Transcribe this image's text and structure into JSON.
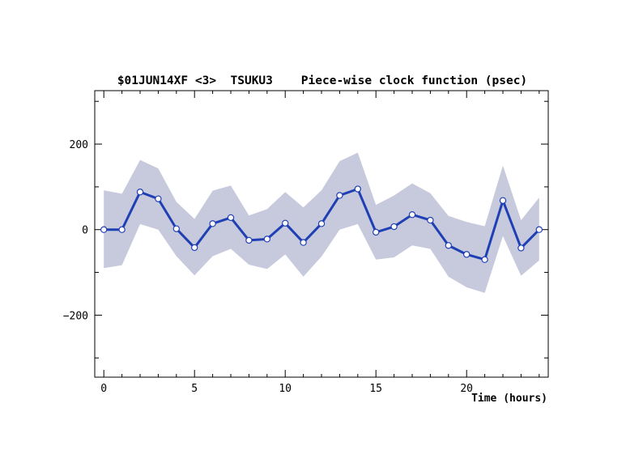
{
  "chart_data": {
    "type": "line",
    "title": "$01JUN14XF <3>  TSUKU3    Piece-wise clock function (psec)",
    "xlabel": "Time (hours)",
    "ylabel": "",
    "xlim": [
      -0.5,
      24.5
    ],
    "ylim": [
      -345,
      325
    ],
    "x_ticks": [
      0,
      5,
      10,
      15,
      20
    ],
    "y_ticks": [
      -200,
      0,
      200
    ],
    "x_tick_labels": [
      "0",
      "5",
      "10",
      "15",
      "20"
    ],
    "y_tick_labels": [
      "−200",
      "0",
      "200"
    ],
    "x": [
      0,
      1,
      2,
      3,
      4,
      5,
      6,
      7,
      8,
      9,
      10,
      11,
      12,
      13,
      14,
      15,
      16,
      17,
      18,
      19,
      20,
      21,
      22,
      23,
      24
    ],
    "series": [
      {
        "values": [
          0,
          0,
          88,
          72,
          2,
          -42,
          14,
          28,
          -25,
          -22,
          15,
          -30,
          14,
          80,
          95,
          -6,
          7,
          35,
          22,
          -37,
          -58,
          -70,
          68,
          -43,
          0
        ],
        "upper": [
          92,
          84,
          163,
          143,
          65,
          25,
          91,
          103,
          33,
          48,
          88,
          52,
          92,
          160,
          180,
          58,
          80,
          108,
          85,
          32,
          18,
          8,
          150,
          22,
          75
        ],
        "lower": [
          -90,
          -83,
          13,
          0,
          -62,
          -107,
          -62,
          -45,
          -82,
          -92,
          -58,
          -110,
          -63,
          0,
          13,
          -70,
          -65,
          -37,
          -45,
          -110,
          -135,
          -148,
          -15,
          -108,
          -72
        ]
      }
    ],
    "grid": false,
    "legend": "none",
    "colors": {
      "band": "#c7cadc",
      "line": "#1f3fb4",
      "marker_fill": "#ffffff",
      "marker_edge": "#1f3fb4",
      "axis": "#000000"
    }
  }
}
